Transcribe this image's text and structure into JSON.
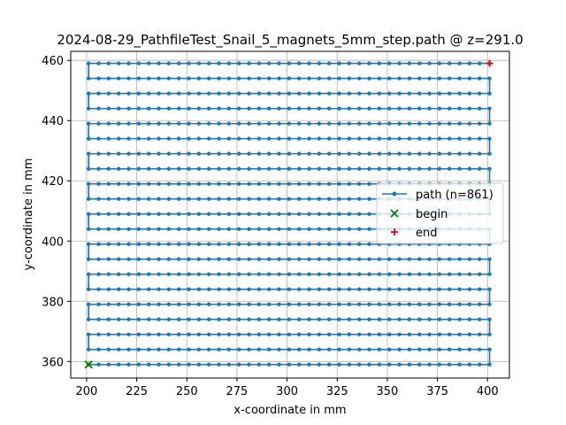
{
  "chart_data": {
    "type": "line",
    "title": "2024-08-29_PathfileTest_Snail_5_magnets_5mm_step.path @ z=291.0",
    "xlabel": "x-coordinate in mm",
    "ylabel": "y-coordinate in mm",
    "xlim": [
      192.1,
      410.9
    ],
    "ylim": [
      354.5,
      463.0
    ],
    "xticks": [
      200,
      225,
      250,
      275,
      300,
      325,
      350,
      375,
      400
    ],
    "yticks": [
      360,
      380,
      400,
      420,
      440,
      460
    ],
    "grid": true,
    "legend_position": "center-right",
    "colors": {
      "path": "#1f77b4",
      "begin": "#008000",
      "end": "#ff0000",
      "grid": "#b0b0b0"
    },
    "series": [
      {
        "name": "path (n=861)",
        "kind": "snake-raster",
        "x_start": 201,
        "x_end": 401,
        "x_step": 5,
        "rows": [
          359,
          364,
          369,
          374,
          379,
          384,
          389,
          394,
          399,
          404,
          409,
          414,
          419,
          424,
          429,
          434,
          439,
          444,
          449,
          454,
          459
        ],
        "first_row_direction": "right",
        "marker": "dot"
      },
      {
        "name": "begin",
        "x": [
          201
        ],
        "y": [
          359
        ],
        "marker": "x"
      },
      {
        "name": "end",
        "x": [
          401
        ],
        "y": [
          459
        ],
        "marker": "+"
      }
    ]
  }
}
